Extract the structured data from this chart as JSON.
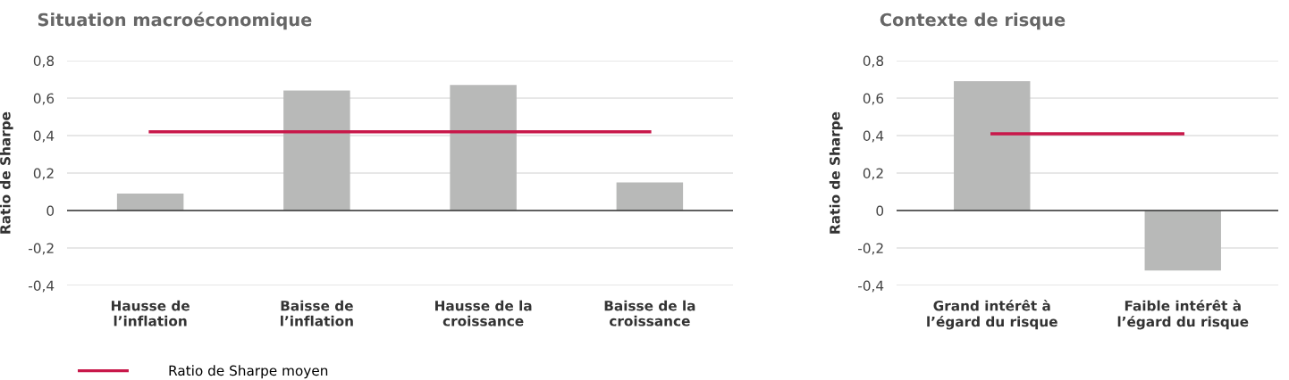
{
  "chart_data": [
    {
      "type": "bar",
      "title": "Situation macroéconomique",
      "ylabel": "Ratio de Sharpe",
      "categories": [
        "Hausse de\nl’inflation",
        "Baisse de\nl’inflation",
        "Hausse de la\ncroissance",
        "Baisse de la\ncroissance"
      ],
      "series": [
        {
          "color": "#b8b9b8",
          "values": [
            0.09,
            0.64,
            0.67,
            0.15
          ]
        },
        {
          "type": "line",
          "name": "Ratio de Sharpe moyen",
          "color": "#c8184a",
          "values": [
            0.42,
            0.42,
            0.42,
            0.42
          ]
        }
      ],
      "ylim": [
        -0.4,
        0.8
      ],
      "yticks": [
        {
          "value": -0.4,
          "label": "-0,4"
        },
        {
          "value": -0.2,
          "label": "-0,2"
        },
        0,
        {
          "value": 0.2,
          "label": "0,2"
        },
        {
          "value": 0.4,
          "label": "0,4"
        },
        {
          "value": 0.6,
          "label": "0,6"
        },
        {
          "value": 0.8,
          "label": "0,8"
        }
      ],
      "grid": "y",
      "legend": "bottom left",
      "marker": "none",
      "line_style": "solid"
    },
    {
      "type": "bar",
      "title": "Contexte de risque",
      "ylabel": "Ratio de Sharpe",
      "categories": [
        "Grand intérêt à\nl’égard du risque",
        "Faible intérêt à\nl’égard du risque"
      ],
      "series": [
        {
          "color": "#b8b9b8",
          "values": [
            0.69,
            -0.32
          ]
        },
        {
          "type": "line",
          "color": "#c8184a",
          "values": [
            0.41,
            0.41
          ]
        }
      ],
      "ylim": [
        -0.4,
        0.8
      ],
      "yticks": [
        {
          "value": -0.4,
          "label": "-0,4"
        },
        {
          "value": -0.2,
          "label": "-0,2"
        },
        0,
        {
          "value": 0.2,
          "label": "0,2"
        },
        {
          "value": 0.4,
          "label": "0,4"
        },
        {
          "value": 0.6,
          "label": "0,6"
        },
        {
          "value": 0.8,
          "label": "0,8"
        }
      ],
      "grid": "y",
      "marker": "none",
      "line_style": "solid"
    }
  ]
}
